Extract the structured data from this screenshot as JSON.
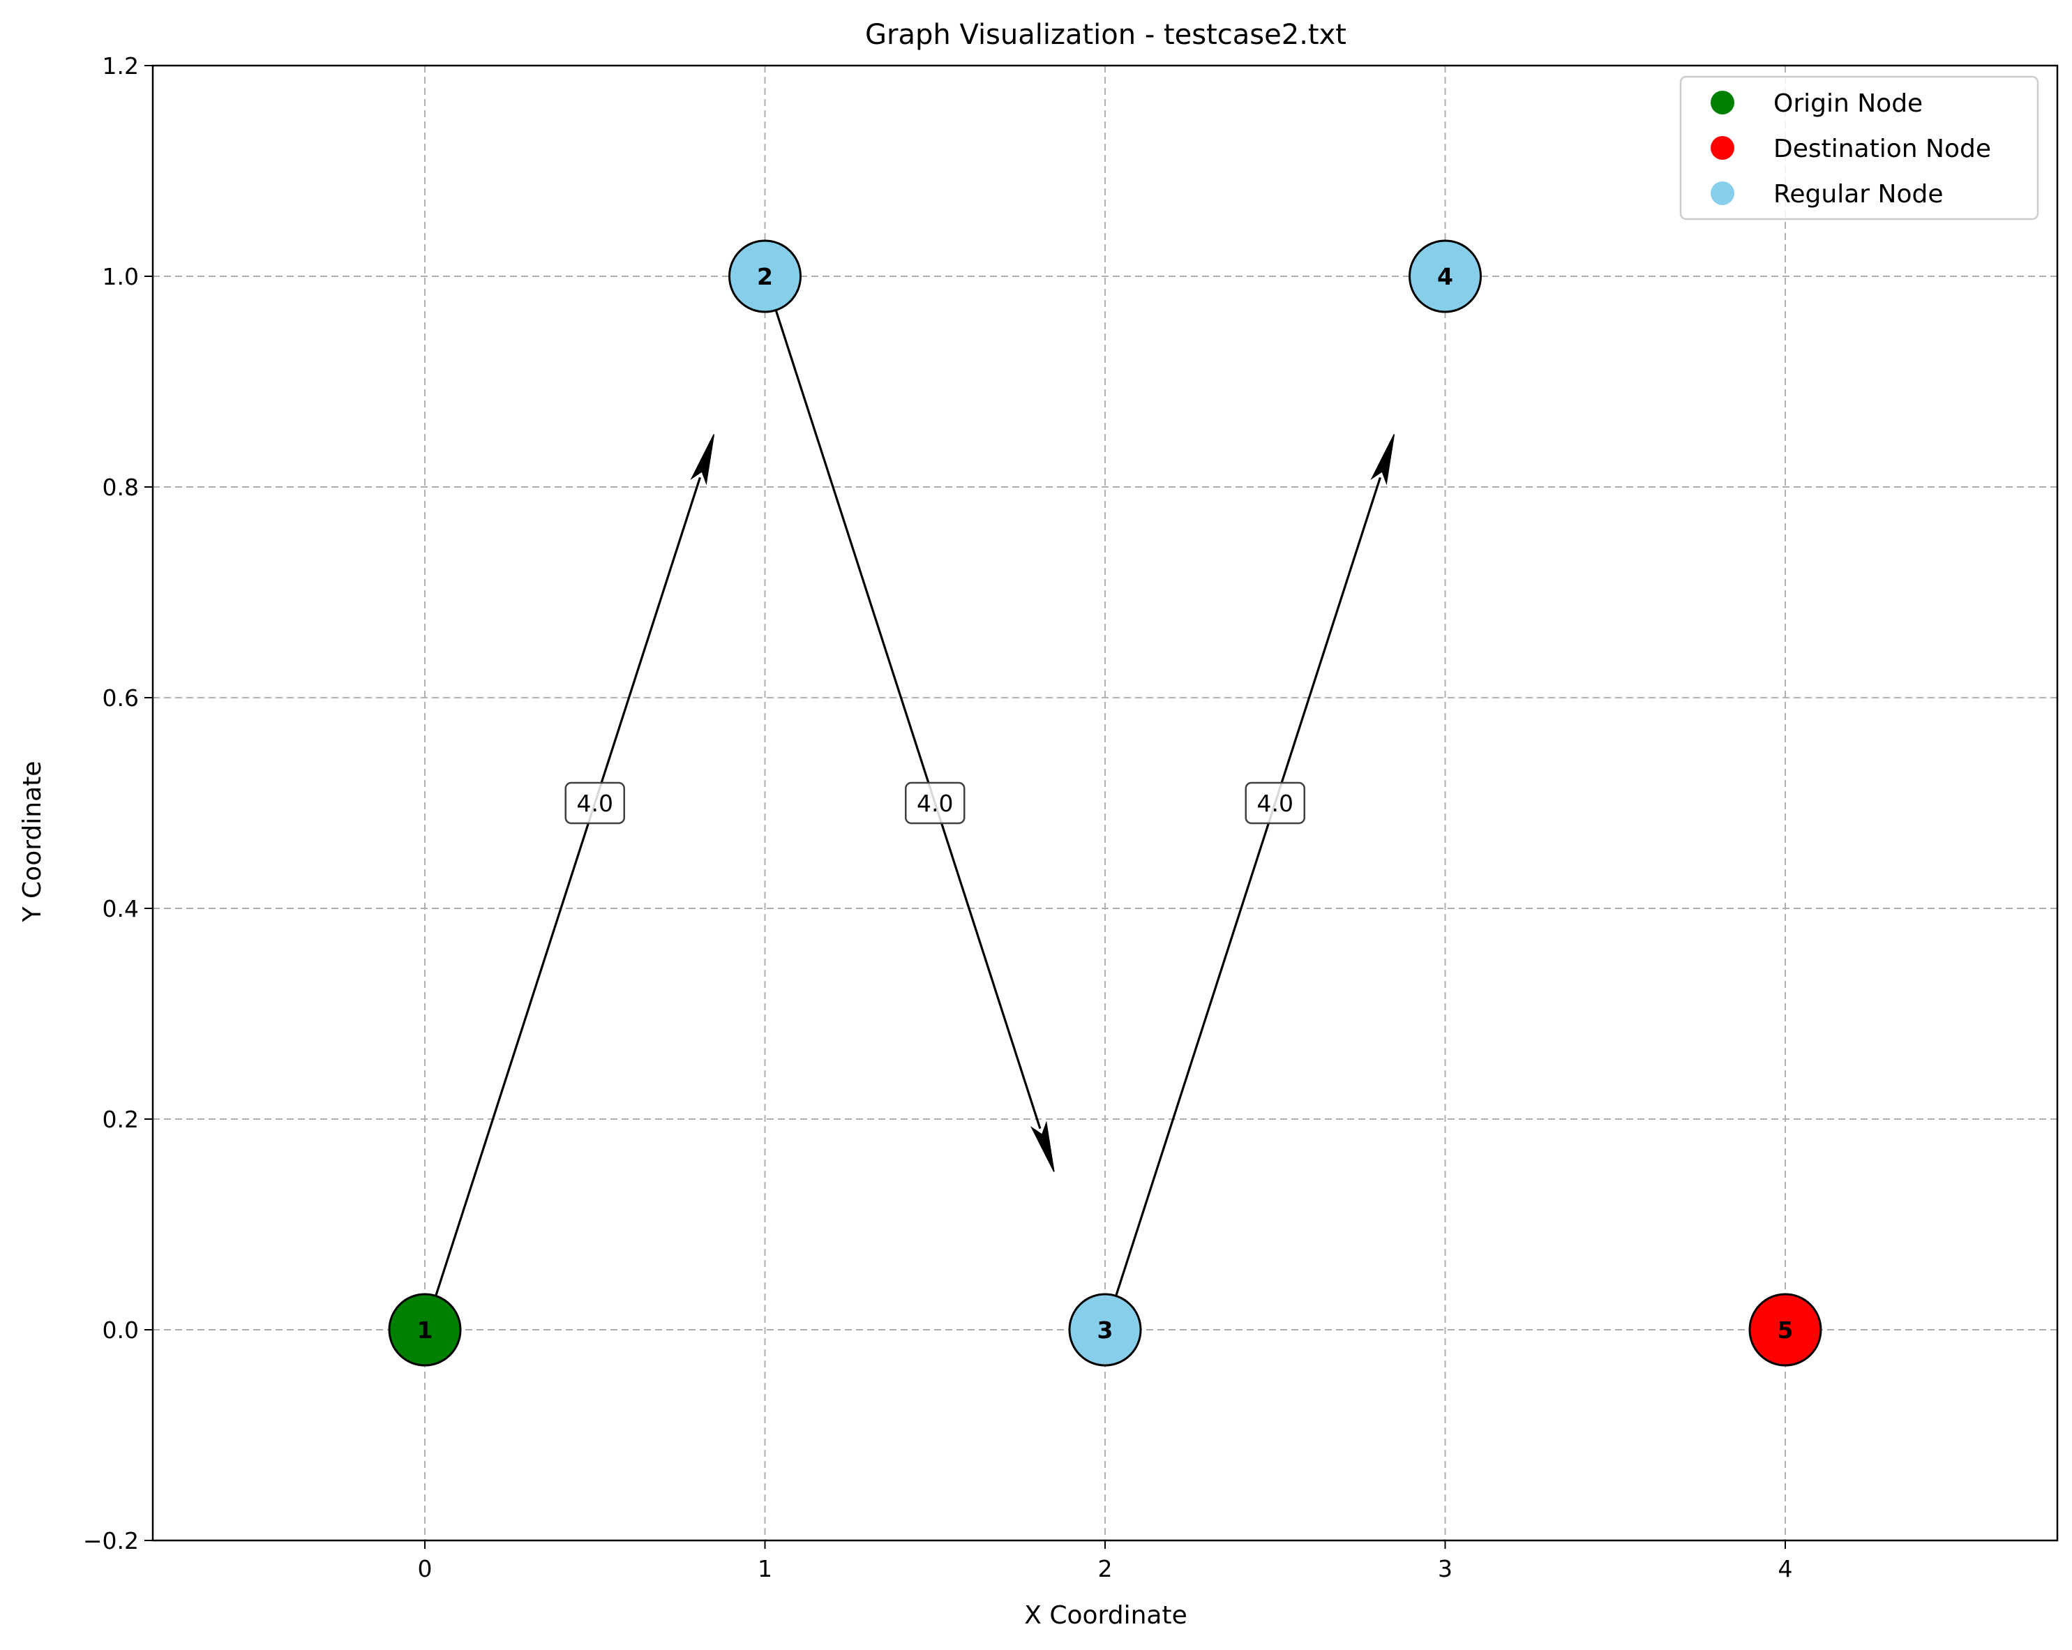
{
  "chart_data": {
    "type": "network-graph",
    "title": "Graph Visualization - testcase2.txt",
    "xlabel": "X Coordinate",
    "ylabel": "Y Coordinate",
    "xlim": [
      -0.8,
      4.8
    ],
    "ylim": [
      -0.2,
      1.2
    ],
    "xticks": [
      0,
      1,
      2,
      3,
      4
    ],
    "yticks": [
      -0.2,
      0.0,
      0.2,
      0.4,
      0.6,
      0.8,
      1.0,
      1.2
    ],
    "xtick_labels": [
      "0",
      "1",
      "2",
      "3",
      "4"
    ],
    "ytick_labels": [
      "−0.2",
      "0.0",
      "0.2",
      "0.4",
      "0.6",
      "0.8",
      "1.0",
      "1.2"
    ],
    "grid": true,
    "legend_position": "top-right",
    "legend": [
      {
        "label": "Origin Node",
        "color": "#008000"
      },
      {
        "label": "Destination Node",
        "color": "#ff0000"
      },
      {
        "label": "Regular Node",
        "color": "#87ceeb"
      }
    ],
    "nodes": [
      {
        "id": "1",
        "x": 0,
        "y": 0,
        "kind": "origin",
        "color": "#008000"
      },
      {
        "id": "2",
        "x": 1,
        "y": 1,
        "kind": "regular",
        "color": "#87ceeb"
      },
      {
        "id": "3",
        "x": 2,
        "y": 0,
        "kind": "regular",
        "color": "#87ceeb"
      },
      {
        "id": "4",
        "x": 3,
        "y": 1,
        "kind": "regular",
        "color": "#87ceeb"
      },
      {
        "id": "5",
        "x": 4,
        "y": 0,
        "kind": "destination",
        "color": "#ff0000"
      }
    ],
    "edges": [
      {
        "from": "1",
        "to": "2",
        "weight": "4.0"
      },
      {
        "from": "2",
        "to": "3",
        "weight": "4.0"
      },
      {
        "from": "3",
        "to": "4",
        "weight": "4.0"
      }
    ]
  }
}
